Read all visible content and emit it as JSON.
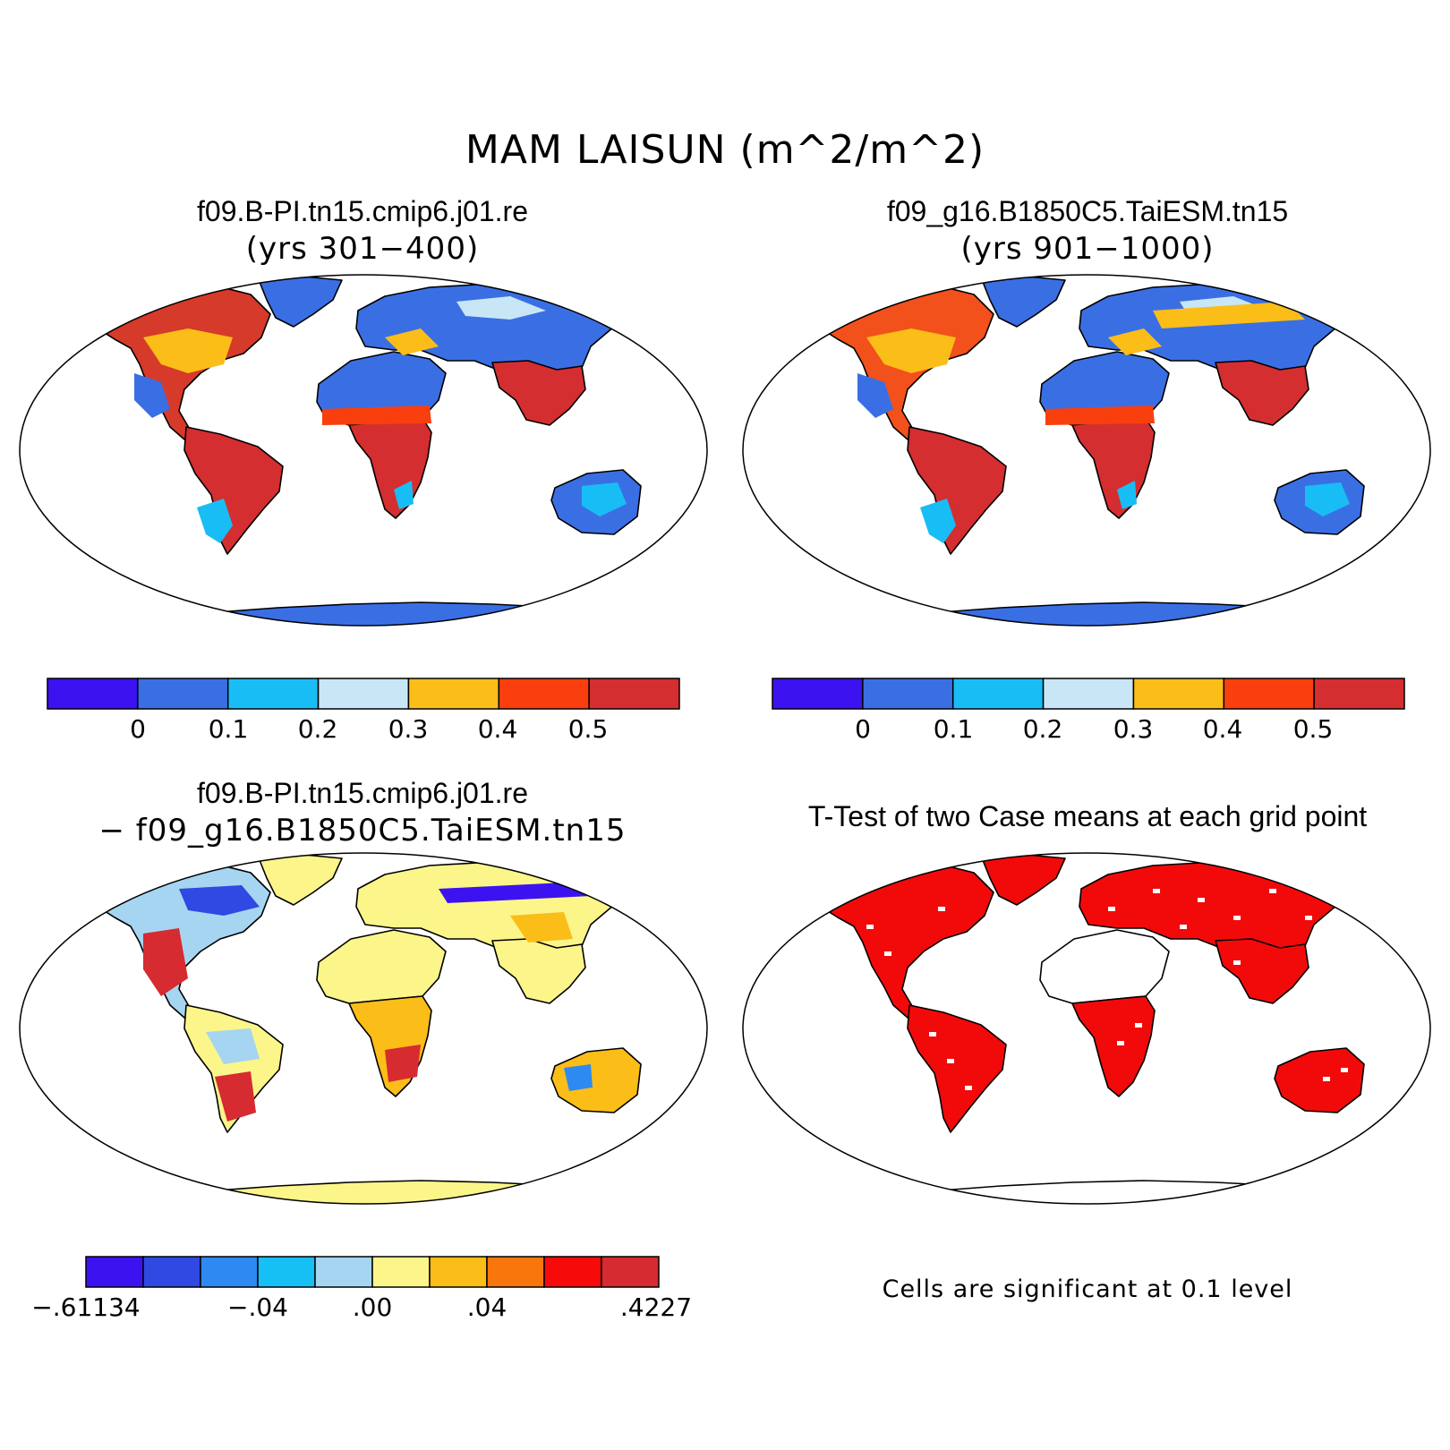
{
  "figure_title": "MAM LAISUN (m^2/m^2)",
  "panels": [
    {
      "title": "f09.B-PI.tn15.cmip6.j01.re",
      "subtitle": "(yrs 301−400)",
      "kind": "field"
    },
    {
      "title": "f09_g16.B1850C5.TaiESM.tn15",
      "subtitle": "(yrs 901−1000)",
      "kind": "field"
    },
    {
      "title": "f09.B-PI.tn15.cmip6.j01.re",
      "subtitle": "− f09_g16.B1850C5.TaiESM.tn15",
      "kind": "difference"
    },
    {
      "title": "T-Test of two Case means at each grid point",
      "subtitle": "",
      "kind": "significance"
    }
  ],
  "colorbar_top": {
    "colors": [
      "#3d12f0",
      "#3a6fe4",
      "#19bdf5",
      "#c8e6f6",
      "#fbbd17",
      "#f83f0d",
      "#d42e30"
    ],
    "labels": [
      "0",
      "0.1",
      "0.2",
      "0.3",
      "0.4",
      "0.5"
    ]
  },
  "colorbar_diff": {
    "colors": [
      "#3d12f0",
      "#2f49e2",
      "#2e8af0",
      "#16bff4",
      "#a6d5f2",
      "#fbf58a",
      "#fbbd17",
      "#f9760c",
      "#f70a0a",
      "#d62b30"
    ],
    "labels": [
      "−.61134",
      "−.04",
      ".00",
      ".04",
      ".4227"
    ]
  },
  "significance_note": "Cells are significant at 0.1 level",
  "significance_color": "#f20a0a",
  "panel_fills": {
    "panel1": {
      "north_america": "#d63a2a",
      "south_america": "#d42e30",
      "africa_north": "#3a6fe4",
      "africa_south": "#d42e30",
      "eurasia": "#3a6fe4",
      "asia_south": "#d42e30",
      "australia": "#3a6fe4",
      "antarctica": "#3a6fe4",
      "greenland": "#3a6fe4"
    },
    "panel2": {
      "north_america": "#f2511b",
      "south_america": "#d42e30",
      "africa_north": "#3a6fe4",
      "africa_south": "#d42e30",
      "eurasia": "#3a6fe4",
      "asia_south": "#d42e30",
      "australia": "#3a6fe4",
      "antarctica": "#3a6fe4",
      "greenland": "#3a6fe4"
    },
    "panel3": {
      "north_america": "#a6d5f2",
      "south_america": "#fbf58a",
      "africa_north": "#fbf58a",
      "africa_south": "#fbbd17",
      "eurasia": "#fbf58a",
      "asia_south": "#fbf58a",
      "australia": "#fbbd17",
      "antarctica": "#fbf58a",
      "greenland": "#fbf58a"
    },
    "panel4": {
      "north_america": "#f20a0a",
      "south_america": "#f20a0a",
      "africa_north": "#ffffff",
      "africa_south": "#f20a0a",
      "eurasia": "#f20a0a",
      "asia_south": "#f20a0a",
      "australia": "#f20a0a",
      "antarctica": "#ffffff",
      "greenland": "#f20a0a"
    }
  }
}
